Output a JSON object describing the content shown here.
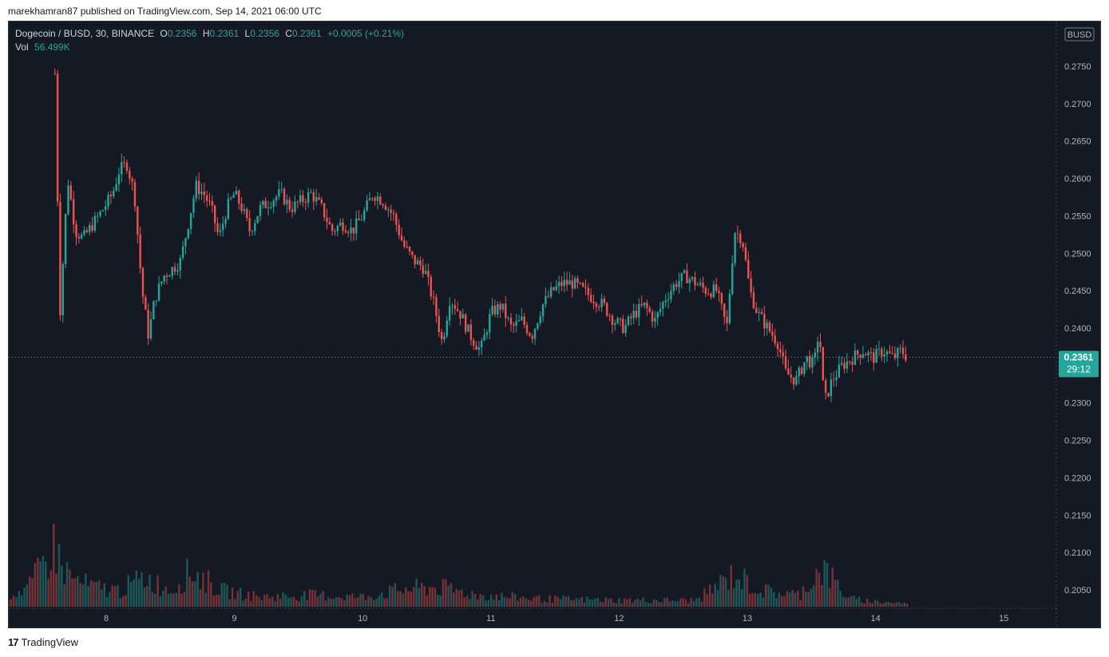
{
  "header": {
    "published_text": "marekhamran87 published on TradingView.com, Sep 14, 2021 06:00 UTC"
  },
  "legend": {
    "symbol": "Dogecoin / BUSD, 30, BINANCE",
    "o_label": "O",
    "o_value": "0.2356",
    "h_label": "H",
    "h_value": "0.2361",
    "l_label": "L",
    "l_value": "0.2356",
    "c_label": "C",
    "c_value": "0.2361",
    "change": "+0.0005 (+0.21%)",
    "vol_label": "Vol",
    "vol_value": "56.499K"
  },
  "price_axis": {
    "currency": "BUSD",
    "ticks": [
      "0.2750",
      "0.2700",
      "0.2650",
      "0.2600",
      "0.2550",
      "0.2500",
      "0.2450",
      "0.2400",
      "0.2300",
      "0.2250",
      "0.2200",
      "0.2150",
      "0.2100",
      "0.2050"
    ]
  },
  "last_price": {
    "value": "0.2361",
    "countdown": "29:12"
  },
  "time_axis": {
    "labels": [
      "8",
      "9",
      "10",
      "11",
      "12",
      "13",
      "14",
      "15"
    ]
  },
  "footer": {
    "brand": "TradingView",
    "logo_glyph": "17"
  },
  "colors": {
    "up": "#26a69a",
    "down": "#ef5350",
    "background": "#151924",
    "text": "#b2b5be"
  },
  "chart_data": {
    "type": "candlestick",
    "ylim": [
      0.202,
      0.28
    ],
    "x_ticks": [
      "8",
      "9",
      "10",
      "11",
      "12",
      "13",
      "14",
      "15"
    ],
    "close_path": [
      [
        7.6,
        0.274
      ],
      [
        7.64,
        0.242
      ],
      [
        7.7,
        0.26
      ],
      [
        7.76,
        0.253
      ],
      [
        7.82,
        0.252
      ],
      [
        7.9,
        0.254
      ],
      [
        7.98,
        0.256
      ],
      [
        8.05,
        0.258
      ],
      [
        8.1,
        0.261
      ],
      [
        8.16,
        0.262
      ],
      [
        8.22,
        0.258
      ],
      [
        8.28,
        0.245
      ],
      [
        8.33,
        0.239
      ],
      [
        8.38,
        0.244
      ],
      [
        8.45,
        0.247
      ],
      [
        8.52,
        0.248
      ],
      [
        8.58,
        0.249
      ],
      [
        8.64,
        0.254
      ],
      [
        8.7,
        0.259
      ],
      [
        8.76,
        0.258
      ],
      [
        8.82,
        0.256
      ],
      [
        8.88,
        0.252
      ],
      [
        8.94,
        0.256
      ],
      [
        9.0,
        0.258
      ],
      [
        9.06,
        0.256
      ],
      [
        9.12,
        0.253
      ],
      [
        9.2,
        0.256
      ],
      [
        9.28,
        0.257
      ],
      [
        9.36,
        0.258
      ],
      [
        9.44,
        0.256
      ],
      [
        9.52,
        0.257
      ],
      [
        9.6,
        0.258
      ],
      [
        9.68,
        0.256
      ],
      [
        9.76,
        0.253
      ],
      [
        9.84,
        0.254
      ],
      [
        9.92,
        0.253
      ],
      [
        10.0,
        0.255
      ],
      [
        10.08,
        0.258
      ],
      [
        10.16,
        0.257
      ],
      [
        10.24,
        0.255
      ],
      [
        10.32,
        0.251
      ],
      [
        10.4,
        0.249
      ],
      [
        10.48,
        0.248
      ],
      [
        10.56,
        0.243
      ],
      [
        10.62,
        0.238
      ],
      [
        10.68,
        0.244
      ],
      [
        10.76,
        0.242
      ],
      [
        10.84,
        0.239
      ],
      [
        10.92,
        0.237
      ],
      [
        11.0,
        0.242
      ],
      [
        11.08,
        0.243
      ],
      [
        11.16,
        0.24
      ],
      [
        11.24,
        0.241
      ],
      [
        11.32,
        0.239
      ],
      [
        11.4,
        0.243
      ],
      [
        11.48,
        0.245
      ],
      [
        11.56,
        0.246
      ],
      [
        11.64,
        0.246
      ],
      [
        11.72,
        0.245
      ],
      [
        11.8,
        0.244
      ],
      [
        11.88,
        0.243
      ],
      [
        11.96,
        0.241
      ],
      [
        12.04,
        0.24
      ],
      [
        12.12,
        0.242
      ],
      [
        12.2,
        0.243
      ],
      [
        12.28,
        0.241
      ],
      [
        12.36,
        0.244
      ],
      [
        12.44,
        0.246
      ],
      [
        12.52,
        0.247
      ],
      [
        12.6,
        0.246
      ],
      [
        12.68,
        0.245
      ],
      [
        12.76,
        0.245
      ],
      [
        12.84,
        0.24
      ],
      [
        12.9,
        0.253
      ],
      [
        12.96,
        0.252
      ],
      [
        13.02,
        0.245
      ],
      [
        13.08,
        0.242
      ],
      [
        13.16,
        0.24
      ],
      [
        13.24,
        0.238
      ],
      [
        13.3,
        0.234
      ],
      [
        13.38,
        0.233
      ],
      [
        13.46,
        0.236
      ],
      [
        13.52,
        0.235
      ],
      [
        13.56,
        0.24
      ],
      [
        13.6,
        0.23
      ],
      [
        13.66,
        0.233
      ],
      [
        13.74,
        0.235
      ],
      [
        13.82,
        0.236
      ],
      [
        13.9,
        0.237
      ],
      [
        13.98,
        0.236
      ],
      [
        14.06,
        0.237
      ],
      [
        14.14,
        0.236
      ],
      [
        14.2,
        0.237
      ],
      [
        14.25,
        0.2361
      ]
    ],
    "volume_path": [
      [
        7.2,
        0.15
      ],
      [
        7.4,
        0.3
      ],
      [
        7.6,
        0.95
      ],
      [
        7.66,
        0.6
      ],
      [
        7.76,
        0.4
      ],
      [
        7.9,
        0.3
      ],
      [
        8.1,
        0.25
      ],
      [
        8.3,
        0.45
      ],
      [
        8.5,
        0.25
      ],
      [
        8.66,
        0.55
      ],
      [
        8.9,
        0.25
      ],
      [
        9.2,
        0.15
      ],
      [
        9.6,
        0.18
      ],
      [
        10.0,
        0.15
      ],
      [
        10.35,
        0.28
      ],
      [
        10.6,
        0.3
      ],
      [
        10.9,
        0.18
      ],
      [
        11.4,
        0.12
      ],
      [
        12.0,
        0.1
      ],
      [
        12.6,
        0.1
      ],
      [
        12.9,
        0.5
      ],
      [
        13.1,
        0.25
      ],
      [
        13.4,
        0.18
      ],
      [
        13.58,
        0.6
      ],
      [
        13.8,
        0.12
      ],
      [
        14.0,
        0.08
      ],
      [
        14.25,
        0.05
      ]
    ]
  }
}
